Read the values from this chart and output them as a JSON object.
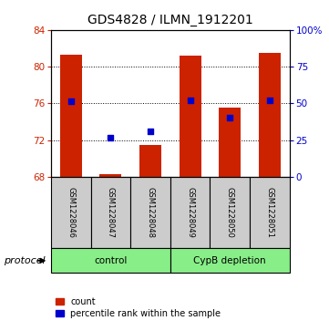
{
  "title": "GDS4828 / ILMN_1912201",
  "samples": [
    "GSM1228046",
    "GSM1228047",
    "GSM1228048",
    "GSM1228049",
    "GSM1228050",
    "GSM1228051"
  ],
  "bar_tops": [
    81.3,
    68.3,
    71.5,
    81.2,
    75.5,
    81.5
  ],
  "bar_bottom": 68,
  "percentile_values": [
    76.2,
    72.3,
    73.0,
    76.35,
    74.5,
    76.35
  ],
  "ylim_left": [
    68,
    84
  ],
  "ylim_right": [
    0,
    100
  ],
  "yticks_left": [
    68,
    72,
    76,
    80,
    84
  ],
  "yticks_right": [
    0,
    25,
    50,
    75,
    100
  ],
  "bar_color": "#cc2200",
  "dot_color": "#0000cc",
  "protocol_label": "protocol",
  "legend_count_label": "count",
  "legend_pct_label": "percentile rank within the sample",
  "title_fontsize": 10,
  "tick_fontsize": 7.5,
  "bg_label_area": "#cccccc",
  "group_color": "#88ee88"
}
